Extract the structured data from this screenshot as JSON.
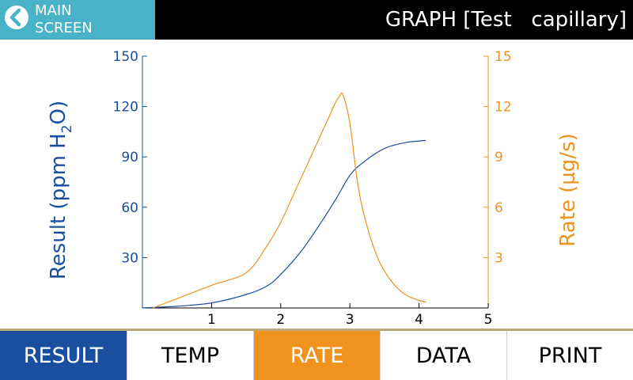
{
  "header": {
    "back_line1": "MAIN",
    "back_line2": "SCREEN",
    "back_icon": "chevron-left-circle-icon",
    "title": "GRAPH [Test   capillary]"
  },
  "tabs": [
    {
      "label": "RESULT",
      "state": "selected-blue"
    },
    {
      "label": "TEMP",
      "state": "normal"
    },
    {
      "label": "RATE",
      "state": "selected-orange"
    },
    {
      "label": "DATA",
      "state": "normal"
    },
    {
      "label": "PRINT",
      "state": "normal"
    }
  ],
  "colors": {
    "header_bg": "#000000",
    "back_button_bg": "#48b2c8",
    "result_color": "#1a4fa0",
    "rate_color": "#f0921e",
    "divider": "#b8a87a"
  },
  "chart_data": {
    "type": "line",
    "xlabel": "",
    "xlim": [
      0,
      5
    ],
    "x_ticks": [
      "1",
      "2",
      "3",
      "4",
      "5"
    ],
    "left_axis": {
      "label_parts": [
        "Result  (ppm  H",
        "2",
        "O)"
      ],
      "ylim": [
        0,
        150
      ],
      "ticks": [
        "30",
        "60",
        "90",
        "120",
        "150"
      ]
    },
    "right_axis": {
      "label": "Rate  (µg/s)",
      "ylim": [
        0,
        15
      ],
      "ticks": [
        "3",
        "6",
        "9",
        "12",
        "15"
      ]
    },
    "series": [
      {
        "name": "Result",
        "axis": "left",
        "color": "#1a4fa0",
        "x": [
          0,
          0.5,
          1.0,
          1.5,
          1.8,
          2.0,
          2.3,
          2.6,
          2.8,
          3.0,
          3.2,
          3.5,
          3.8,
          4.0,
          4.1
        ],
        "y": [
          0,
          1,
          3,
          8,
          13,
          20,
          34,
          52,
          65,
          79,
          87,
          95,
          98.5,
          99.5,
          99.8
        ]
      },
      {
        "name": "Rate",
        "axis": "right",
        "color": "#f0921e",
        "x": [
          0.15,
          0.5,
          1.0,
          1.5,
          1.8,
          2.0,
          2.2,
          2.4,
          2.6,
          2.7,
          2.8,
          2.85,
          2.9,
          3.0,
          3.1,
          3.2,
          3.4,
          3.6,
          3.8,
          4.0,
          4.1
        ],
        "y": [
          0,
          0.55,
          1.35,
          2.1,
          3.7,
          5.1,
          6.9,
          8.7,
          10.5,
          11.4,
          12.3,
          12.6,
          12.7,
          11.0,
          7.8,
          5.6,
          3.0,
          1.6,
          0.8,
          0.45,
          0.35
        ]
      }
    ]
  }
}
